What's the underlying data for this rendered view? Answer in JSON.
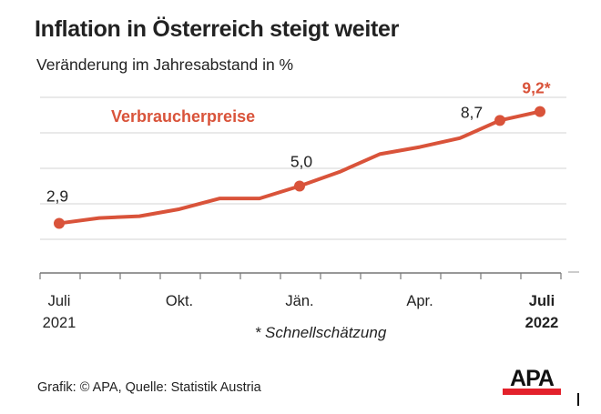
{
  "title": "Inflation in Österreich steigt weiter",
  "subtitle": "Veränderung im Jahresabstand in %",
  "source": "Grafik: © APA, Quelle: Statistik Austria",
  "logo_text": "APA",
  "footnote": "* Schnellschätzung",
  "colors": {
    "series": "#d9533a",
    "grid": "#dcdcdc",
    "axis": "#777777",
    "logo_bar": "#e3212b"
  },
  "chart_data": {
    "type": "line",
    "title": "Inflation in Österreich steigt weiter",
    "subtitle": "Veränderung im Jahresabstand in %",
    "x": [
      "2021-07",
      "2021-08",
      "2021-09",
      "2021-10",
      "2021-11",
      "2021-12",
      "2022-01",
      "2022-02",
      "2022-03",
      "2022-04",
      "2022-05",
      "2022-06",
      "2022-07"
    ],
    "series": [
      {
        "name": "Verbraucherpreise",
        "values": [
          2.9,
          3.2,
          3.3,
          3.7,
          4.3,
          4.3,
          5.0,
          5.8,
          6.8,
          7.2,
          7.7,
          8.7,
          9.2
        ]
      }
    ],
    "data_labels": [
      {
        "index": 0,
        "text": "2,9"
      },
      {
        "index": 6,
        "text": "5,0"
      },
      {
        "index": 11,
        "text": "8,7"
      },
      {
        "index": 12,
        "text": "9,2*",
        "highlight": true
      }
    ],
    "marked_points": [
      0,
      6,
      11,
      12
    ],
    "x_tick_labels": [
      {
        "index": 0,
        "line1": "Juli",
        "line2": "2021",
        "bold": false
      },
      {
        "index": 3,
        "line1": "Okt.",
        "line2": "",
        "bold": false
      },
      {
        "index": 6,
        "line1": "Jän.",
        "line2": "",
        "bold": false
      },
      {
        "index": 9,
        "line1": "Apr.",
        "line2": "",
        "bold": false
      },
      {
        "index": 12,
        "line1": "Juli",
        "line2": "2022",
        "bold": true
      }
    ],
    "ylim": [
      0,
      10
    ],
    "y_gridlines": [
      2,
      4,
      6,
      8,
      10
    ],
    "y_tick_labels_shown": false,
    "grid": true,
    "legend": "inline-top-left"
  }
}
